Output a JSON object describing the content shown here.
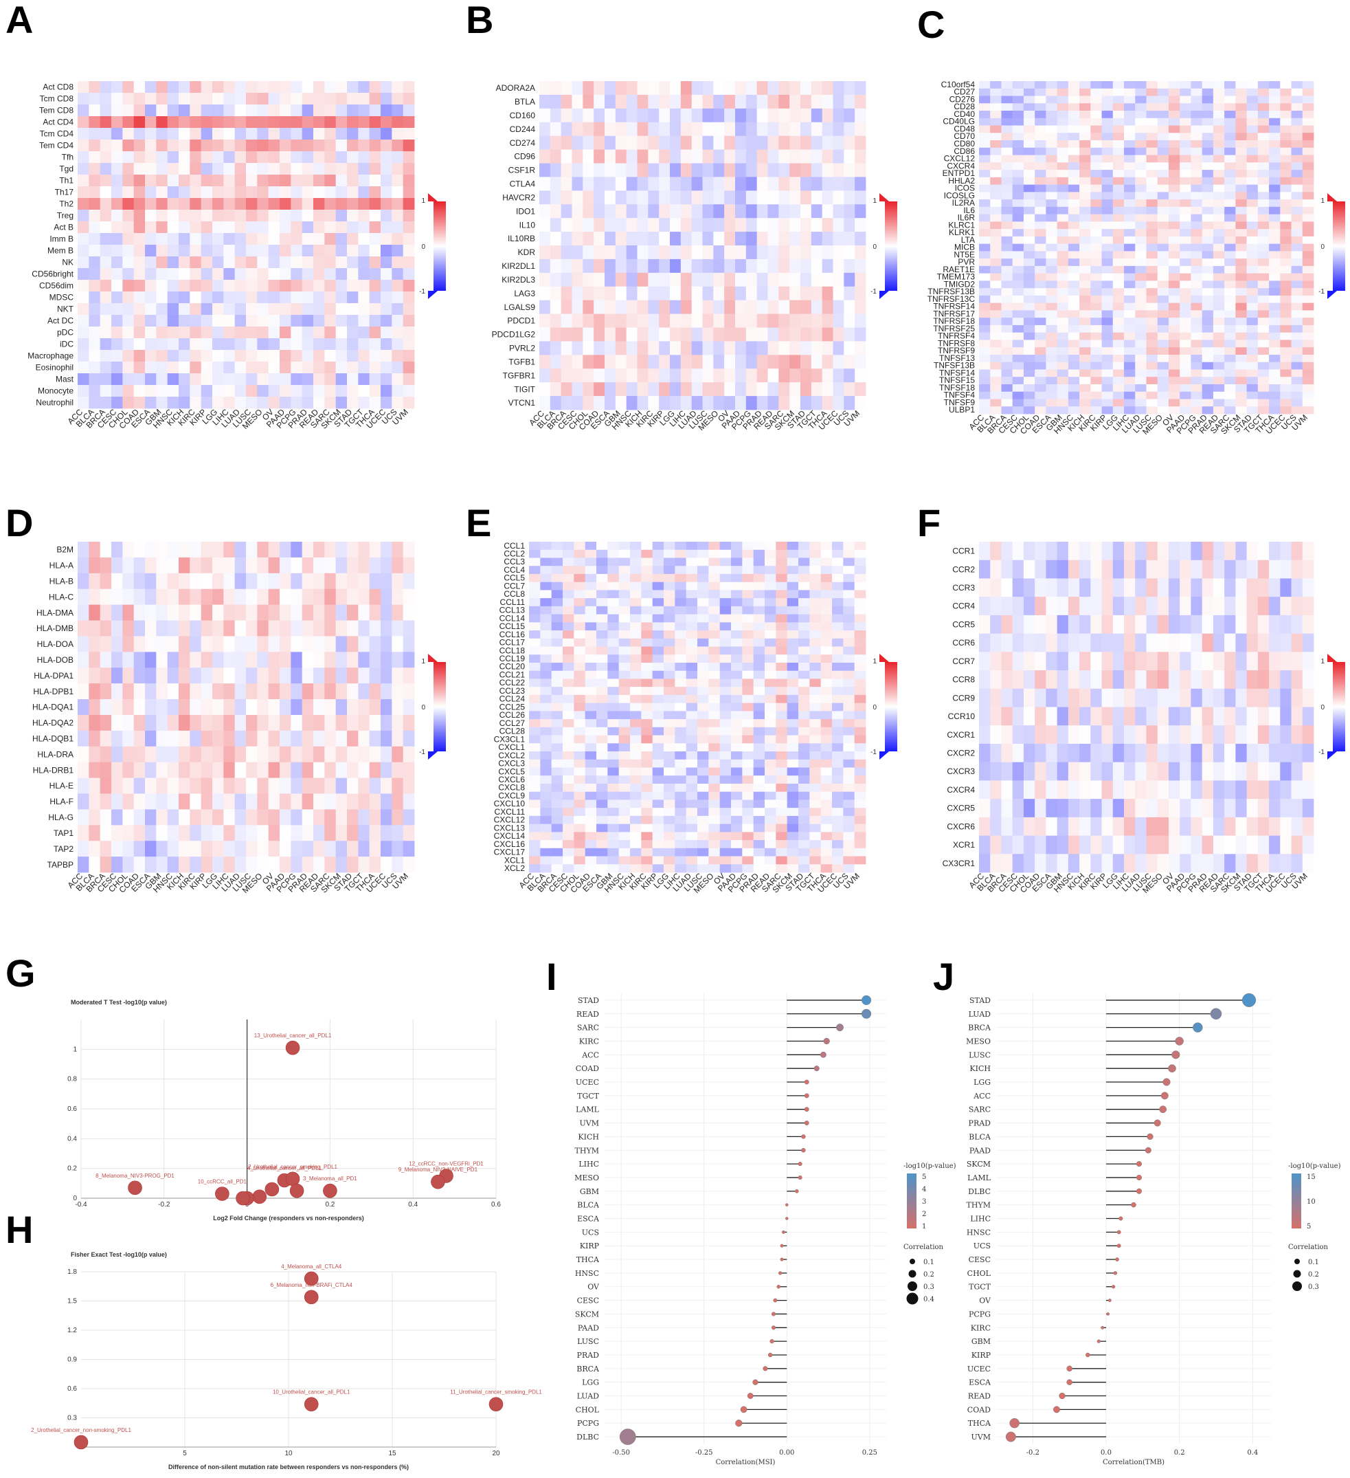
{
  "panels": [
    "A",
    "B",
    "C",
    "D",
    "E",
    "F",
    "G",
    "H",
    "I",
    "J"
  ],
  "cancers": [
    "ACC",
    "BLCA",
    "BRCA",
    "CESC",
    "CHOL",
    "COAD",
    "ESCA",
    "GBM",
    "HNSC",
    "KICH",
    "KIRC",
    "KIRP",
    "LGG",
    "LIHC",
    "LUAD",
    "LUSC",
    "MESO",
    "OV",
    "PAAD",
    "PCPG",
    "PRAD",
    "READ",
    "SARC",
    "SKCM",
    "STAD",
    "TGCT",
    "THCA",
    "UCEC",
    "UCS",
    "UVM"
  ],
  "heatmap_legend": {
    "top": "1",
    "mid": "0",
    "bottom": "-1"
  },
  "colors": {
    "pos": "#e8232b",
    "neg": "#1a1aff",
    "mid": "#f2f2f2",
    "point": "#c0504d",
    "lollipop_low": "#d6706a",
    "lollipop_high": "#4f93c9"
  },
  "chart_data": [
    {
      "panel": "A",
      "type": "heatmap",
      "rows": [
        "Act CD8",
        "Tcm CD8",
        "Tem CD8",
        "Act CD4",
        "Tcm CD4",
        "Tem CD4",
        "Tfh",
        "Tgd",
        "Th1",
        "Th17",
        "Th2",
        "Treg",
        "Act B",
        "Imm B",
        "Mem B",
        "NK",
        "CD56bright",
        "CD56dim",
        "MDSC",
        "NKT",
        "Act DC",
        "pDC",
        "iDC",
        "Macrophage",
        "Eosinophil",
        "Mast",
        "Monocyte",
        "Neutrophil"
      ],
      "xlabels": "cancers",
      "vmin": -1,
      "vmax": 1,
      "strong_rows": {
        "Act CD4": 0.55,
        "Tem CD4": 0.35,
        "Th2": 0.45,
        "Th1": 0.2
      }
    },
    {
      "panel": "B",
      "type": "heatmap",
      "rows": [
        "ADORA2A",
        "BTLA",
        "CD160",
        "CD244",
        "CD274",
        "CD96",
        "CSF1R",
        "CTLA4",
        "HAVCR2",
        "IDO1",
        "IL10",
        "IL10RB",
        "KDR",
        "KIR2DL1",
        "KIR2DL3",
        "LAG3",
        "LGALS9",
        "PDCD1",
        "PDCD1LG2",
        "PVRL2",
        "TGFB1",
        "TGFBR1",
        "TIGIT",
        "VTCN1"
      ],
      "xlabels": "cancers",
      "vmin": -1,
      "vmax": 1
    },
    {
      "panel": "C",
      "type": "heatmap",
      "rows": [
        "C10orf54",
        "CD27",
        "CD276",
        "CD28",
        "CD40",
        "CD40LG",
        "CD48",
        "CD70",
        "CD80",
        "CD86",
        "CXCL12",
        "CXCR4",
        "ENTPD1",
        "HHLA2",
        "ICOS",
        "ICOSLG",
        "IL2RA",
        "IL6",
        "IL6R",
        "KLRC1",
        "KLRK1",
        "LTA",
        "MICB",
        "NT5E",
        "PVR",
        "RAET1E",
        "TMEM173",
        "TMIGD2",
        "TNFRSF13B",
        "TNFRSF13C",
        "TNFRSF14",
        "TNFRSF17",
        "TNFRSF18",
        "TNFRSF25",
        "TNFRSF4",
        "TNFRSF8",
        "TNFRSF9",
        "TNFSF13",
        "TNFSF13B",
        "TNFSF14",
        "TNFSF15",
        "TNFSF18",
        "TNFSF4",
        "TNFSF9",
        "ULBP1"
      ],
      "xlabels": "cancers",
      "vmin": -1,
      "vmax": 1
    },
    {
      "panel": "D",
      "type": "heatmap",
      "rows": [
        "B2M",
        "HLA-A",
        "HLA-B",
        "HLA-C",
        "HLA-DMA",
        "HLA-DMB",
        "HLA-DOA",
        "HLA-DOB",
        "HLA-DPA1",
        "HLA-DPB1",
        "HLA-DQA1",
        "HLA-DQA2",
        "HLA-DQB1",
        "HLA-DRA",
        "HLA-DRB1",
        "HLA-E",
        "HLA-F",
        "HLA-G",
        "TAP1",
        "TAP2",
        "TAPBP"
      ],
      "xlabels": "cancers",
      "vmin": -1,
      "vmax": 1
    },
    {
      "panel": "E",
      "type": "heatmap",
      "rows": [
        "CCL1",
        "CCL2",
        "CCL3",
        "CCL4",
        "CCL5",
        "CCL7",
        "CCL8",
        "CCL11",
        "CCL13",
        "CCL14",
        "CCL15",
        "CCL16",
        "CCL17",
        "CCL18",
        "CCL19",
        "CCL20",
        "CCL21",
        "CCL22",
        "CCL23",
        "CCL24",
        "CCL25",
        "CCL26",
        "CCL27",
        "CCL28",
        "CX3CL1",
        "CXCL1",
        "CXCL2",
        "CXCL3",
        "CXCL5",
        "CXCL6",
        "CXCL8",
        "CXCL9",
        "CXCL10",
        "CXCL11",
        "CXCL12",
        "CXCL13",
        "CXCL14",
        "CXCL16",
        "CXCL17",
        "XCL1",
        "XCL2"
      ],
      "xlabels": "cancers",
      "vmin": -1,
      "vmax": 1
    },
    {
      "panel": "F",
      "type": "heatmap",
      "rows": [
        "CCR1",
        "CCR2",
        "CCR3",
        "CCR4",
        "CCR5",
        "CCR6",
        "CCR7",
        "CCR8",
        "CCR9",
        "CCR10",
        "CXCR1",
        "CXCR2",
        "CXCR3",
        "CXCR4",
        "CXCR5",
        "CXCR6",
        "XCR1",
        "CX3CR1"
      ],
      "xlabels": "cancers",
      "vmin": -1,
      "vmax": 1
    },
    {
      "panel": "G",
      "type": "scatter",
      "title": "Moderated T Test -log10(p value)",
      "xlabel": "Log2 Fold Change (responders vs non-responders)",
      "xlim": [
        -0.4,
        0.6
      ],
      "ylim": [
        0,
        1.2
      ],
      "xticks": [
        "-0.4",
        "-0.2",
        "0",
        "0.2",
        "0.4",
        "0.6"
      ],
      "yticks": [
        "0",
        "0.2",
        "0.4",
        "0.6",
        "0.8",
        "1"
      ],
      "points": [
        {
          "x": 0.11,
          "y": 1.01,
          "label": "13_Urothelial_cancer_all_PDL1"
        },
        {
          "x": -0.27,
          "y": 0.07,
          "label": "8_Melanoma_NIV3-PROG_PD1"
        },
        {
          "x": 0.48,
          "y": 0.15,
          "label": "12_ccRCC_non-VEGFRi_PD1"
        },
        {
          "x": 0.46,
          "y": 0.11,
          "label": "9_Melanoma_NIV3-NAIVE_PD1"
        },
        {
          "x": 0.09,
          "y": 0.12,
          "label": "4_Urothelial_cancer_all_PDL1"
        },
        {
          "x": 0.11,
          "y": 0.13,
          "label": "2_Urothelial_cancer_smoking_PDL1"
        },
        {
          "x": 0.2,
          "y": 0.05,
          "label": "3_Melanoma_all_PD1"
        },
        {
          "x": 0.12,
          "y": 0.05,
          "label": ""
        },
        {
          "x": 0.06,
          "y": 0.06,
          "label": ""
        },
        {
          "x": 0.03,
          "y": 0.01,
          "label": ""
        },
        {
          "x": 0.0,
          "y": 0.0,
          "label": ""
        },
        {
          "x": -0.01,
          "y": 0.0,
          "label": ""
        },
        {
          "x": -0.06,
          "y": 0.03,
          "label": "10_ccRCC_all_PD1"
        }
      ]
    },
    {
      "panel": "H",
      "type": "scatter",
      "title": "Fisher Exact Test -log10(p value)",
      "xlabel": "Difference of non-silent mutation rate between responders vs non-responders (%)",
      "xlim": [
        0,
        20
      ],
      "ylim": [
        0,
        1.8
      ],
      "xticks": [
        "5",
        "10",
        "15",
        "20"
      ],
      "yticks": [
        "0.3",
        "0.6",
        "0.9",
        "1.2",
        "1.5",
        "1.8"
      ],
      "points": [
        {
          "x": 11.1,
          "y": 1.73,
          "label": "4_Melanoma_all_CTLA4"
        },
        {
          "x": 11.1,
          "y": 1.54,
          "label": "6_Melanoma_non-BRAFi_CTLA4"
        },
        {
          "x": 11.1,
          "y": 0.44,
          "label": "10_Urothelial_cancer_all_PDL1"
        },
        {
          "x": 20.0,
          "y": 0.44,
          "label": "11_Urothelial_cancer_smoking_PDL1"
        },
        {
          "x": 0.0,
          "y": 0.05,
          "label": "2_Urothelial_cancer_non-smoking_PDL1"
        }
      ]
    },
    {
      "panel": "I",
      "type": "lollipop",
      "xlabel": "Correlation(MSI)",
      "xticks": [
        "-0.50",
        "-0.25",
        "0.00",
        "0.25"
      ],
      "xlim": [
        -0.55,
        0.3
      ],
      "categories": [
        "STAD",
        "READ",
        "SARC",
        "KIRC",
        "ACC",
        "COAD",
        "UCEC",
        "TGCT",
        "LAML",
        "UVM",
        "KICH",
        "THYM",
        "LIHC",
        "MESO",
        "GBM",
        "BLCA",
        "ESCA",
        "UCS",
        "KIRP",
        "THCA",
        "HNSC",
        "OV",
        "CESC",
        "SKCM",
        "PAAD",
        "LUSC",
        "PRAD",
        "BRCA",
        "LGG",
        "LUAD",
        "CHOL",
        "PCPG",
        "DLBC"
      ],
      "values": [
        0.24,
        0.24,
        0.16,
        0.12,
        0.11,
        0.09,
        0.06,
        0.06,
        0.06,
        0.06,
        0.05,
        0.05,
        0.04,
        0.04,
        0.03,
        0.0,
        0.0,
        -0.01,
        -0.015,
        -0.015,
        -0.02,
        -0.025,
        -0.035,
        -0.04,
        -0.04,
        -0.045,
        -0.05,
        -0.065,
        -0.095,
        -0.11,
        -0.13,
        -0.145,
        -0.48
      ],
      "neglog10p": [
        6,
        5,
        3,
        2,
        2,
        2,
        1,
        1,
        1,
        1,
        1,
        1,
        1,
        1,
        1,
        1,
        1,
        1,
        1,
        1,
        1,
        1,
        1,
        1,
        1,
        1,
        1,
        1,
        1,
        1,
        1,
        1,
        3
      ],
      "legend_title": "-log10(p-value)",
      "legend_ticks": [
        "5",
        "4",
        "3",
        "2",
        "1"
      ],
      "size_title": "Correlation",
      "size_ticks": [
        "0.1",
        "0.2",
        "0.3",
        "0.4"
      ]
    },
    {
      "panel": "J",
      "type": "lollipop",
      "xlabel": "Correlation(TMB)",
      "xticks": [
        "-0.2",
        "0.0",
        "0.2",
        "0.4"
      ],
      "xlim": [
        -0.3,
        0.45
      ],
      "categories": [
        "STAD",
        "LUAD",
        "BRCA",
        "MESO",
        "LUSC",
        "KICH",
        "LGG",
        "ACC",
        "SARC",
        "PRAD",
        "BLCA",
        "PAAD",
        "SKCM",
        "LAML",
        "DLBC",
        "THYM",
        "LIHC",
        "HNSC",
        "UCS",
        "CESC",
        "CHOL",
        "TGCT",
        "OV",
        "PCPG",
        "KIRC",
        "GBM",
        "KIRP",
        "UCEC",
        "ESCA",
        "READ",
        "COAD",
        "THCA",
        "UVM"
      ],
      "values": [
        0.39,
        0.3,
        0.25,
        0.2,
        0.19,
        0.18,
        0.165,
        0.16,
        0.155,
        0.14,
        0.12,
        0.115,
        0.09,
        0.09,
        0.09,
        0.075,
        0.04,
        0.035,
        0.035,
        0.03,
        0.025,
        0.02,
        0.01,
        0.005,
        -0.01,
        -0.02,
        -0.05,
        -0.1,
        -0.1,
        -0.12,
        -0.135,
        -0.25,
        -0.26
      ],
      "neglog10p": [
        15,
        10,
        14,
        3,
        3,
        3,
        2,
        2,
        2,
        2,
        2,
        2,
        1,
        1,
        1,
        1,
        1,
        1,
        1,
        1,
        1,
        1,
        1,
        1,
        1,
        1,
        1,
        1,
        1,
        1,
        1,
        2,
        2
      ],
      "legend_title": "-log10(p-value)",
      "legend_ticks": [
        "15",
        "10",
        "5"
      ],
      "size_title": "Correlation",
      "size_ticks": [
        "0.1",
        "0.2",
        "0.3"
      ]
    }
  ]
}
